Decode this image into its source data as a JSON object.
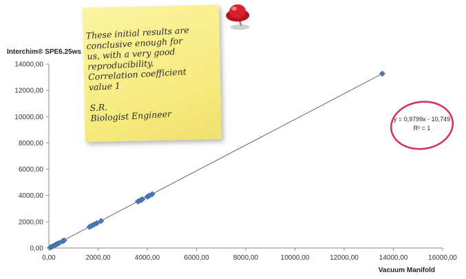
{
  "chart_data": {
    "type": "scatter",
    "xlabel": "Vacuum Manifold",
    "ylabel": "Interchim® SPE6.25ws",
    "xlim": [
      0,
      16000
    ],
    "ylim": [
      0,
      14000
    ],
    "x_ticks": [
      "0,00",
      "2000,00",
      "4000,00",
      "6000,00",
      "8000,00",
      "10000,00",
      "12000,00",
      "14000,00",
      "16000,00"
    ],
    "y_ticks": [
      "0,00",
      "2000,00",
      "4000,00",
      "6000,00",
      "8000,00",
      "10000,00",
      "12000,00",
      "14000,00"
    ],
    "x_tick_values": [
      0,
      2000,
      4000,
      6000,
      8000,
      10000,
      12000,
      14000,
      16000
    ],
    "y_tick_values": [
      0,
      2000,
      4000,
      6000,
      8000,
      10000,
      12000,
      14000
    ],
    "points": [
      [
        60,
        40
      ],
      [
        120,
        100
      ],
      [
        200,
        170
      ],
      [
        280,
        250
      ],
      [
        350,
        320
      ],
      [
        420,
        380
      ],
      [
        560,
        520
      ],
      [
        620,
        580
      ],
      [
        1650,
        1600
      ],
      [
        1750,
        1700
      ],
      [
        1850,
        1800
      ],
      [
        1950,
        1890
      ],
      [
        2120,
        2060
      ],
      [
        3620,
        3540
      ],
      [
        3720,
        3630
      ],
      [
        3800,
        3710
      ],
      [
        4000,
        3900
      ],
      [
        4080,
        3980
      ],
      [
        4200,
        4100
      ],
      [
        13550,
        13270
      ]
    ],
    "trendline": {
      "slope": 0.9799,
      "intercept": -10.749,
      "x_range": [
        0,
        13550
      ]
    },
    "equation": "y = 0,9799x - 10,749",
    "r_squared": "R² = 1",
    "grid": false,
    "marker_color": "#4a7ab8",
    "trend_color": "#555555"
  },
  "note": {
    "lines": [
      "These initial results are",
      "conclusive enough for",
      "us, with a very good",
      "reproducibility.",
      "Correlation coefficient",
      "value 1"
    ],
    "signature": [
      "S.R.",
      "Biologist Engineer"
    ],
    "color": "#f6ea7c",
    "pin_color": "#d9202c"
  },
  "circle_color": "#d6306e"
}
